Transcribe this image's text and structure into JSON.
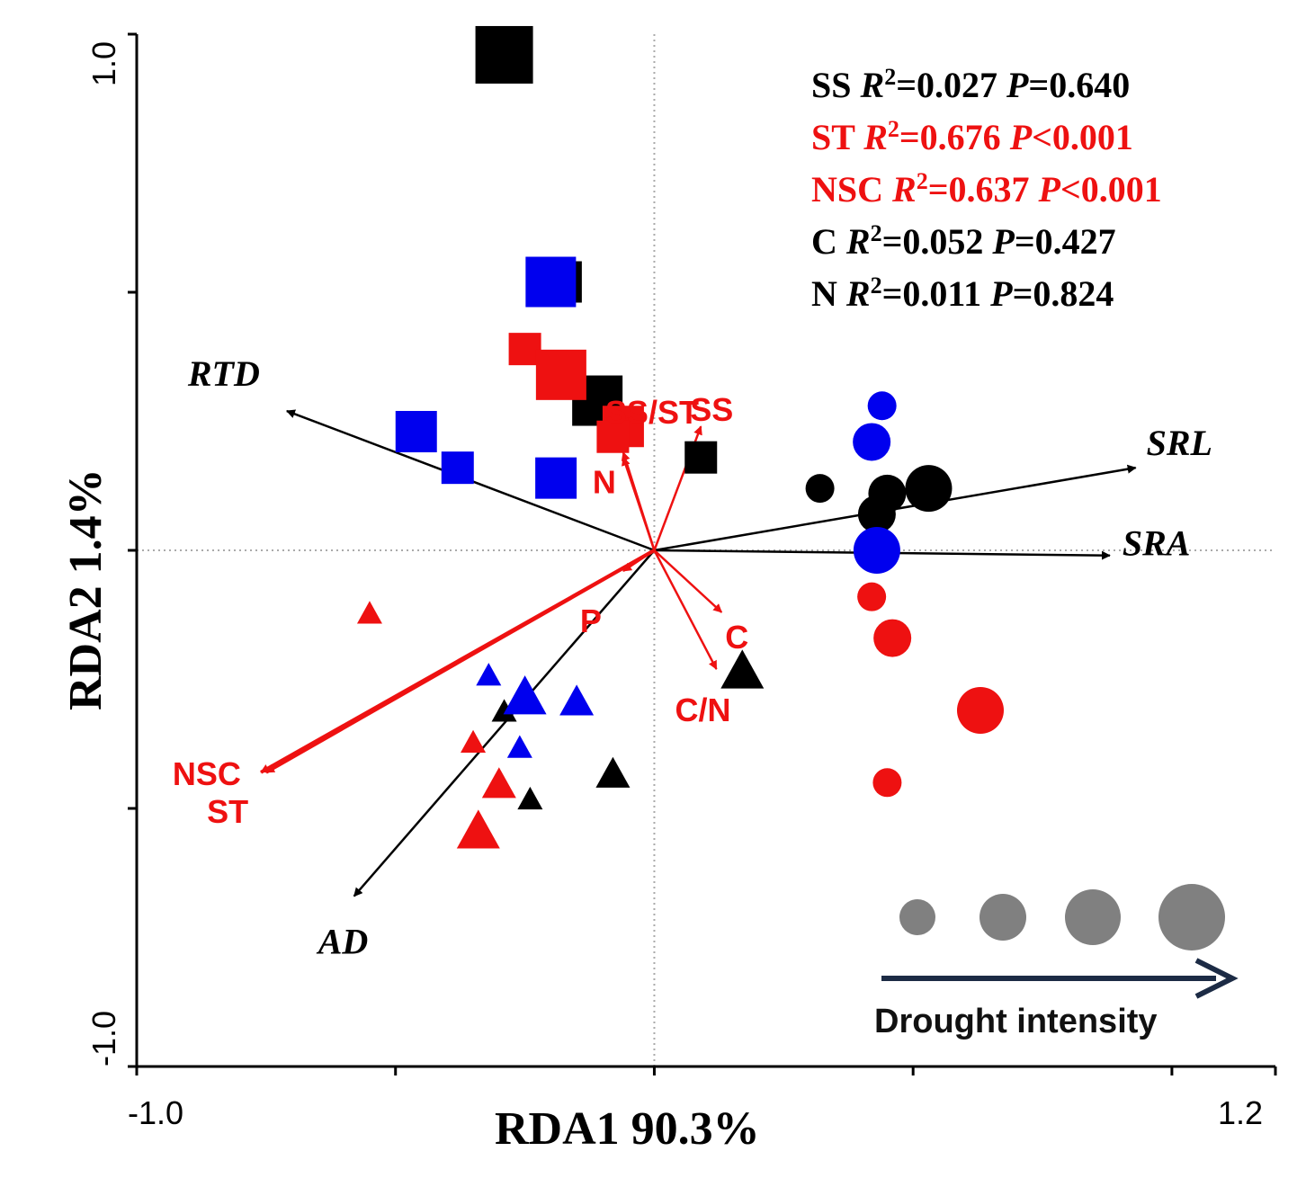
{
  "chart_data": {
    "type": "scatter",
    "subtype": "RDA biplot",
    "xlabel": "RDA1 90.3%",
    "ylabel": "RDA2 1.4%",
    "xlim": [
      -1.0,
      1.2
    ],
    "ylim": [
      -1.0,
      1.0
    ],
    "x_tick_labels": [
      "-1.0",
      "1.2"
    ],
    "y_tick_labels": [
      "1.0",
      "-1.0"
    ],
    "x_minor_ticks": [
      -1.0,
      -0.5,
      0.0,
      0.5,
      1.0
    ],
    "y_minor_ticks": [
      -1.0,
      -0.5,
      0.0,
      0.5,
      1.0
    ],
    "reference_lines": {
      "x": 0.0,
      "y": 0.0,
      "style": "dotted"
    },
    "colors": {
      "black": "#000000",
      "red": "#ee1111",
      "blue": "#0000ee",
      "legend_gray": "#808080",
      "drought_arrow": "#1c2b45"
    },
    "stats": [
      {
        "var": "SS",
        "r2_label": "R",
        "r2_value": "=0.027",
        "p_label": "P",
        "p_value": "=0.640",
        "color": "#000000"
      },
      {
        "var": "ST",
        "r2_label": "R",
        "r2_value": "=0.676",
        "p_label": "P",
        "p_value": "<0.001",
        "color": "#ee1111"
      },
      {
        "var": "NSC",
        "r2_label": "R",
        "r2_value": "=0.637",
        "p_label": "P",
        "p_value": "<0.001",
        "color": "#ee1111"
      },
      {
        "var": "C",
        "r2_label": "R",
        "r2_value": "=0.052",
        "p_label": "P",
        "p_value": "=0.427",
        "color": "#000000"
      },
      {
        "var": "N",
        "r2_label": "R",
        "r2_value": "=0.011",
        "p_label": "P",
        "p_value": "=0.824",
        "color": "#000000"
      }
    ],
    "vectors_black": [
      {
        "label": "RTD",
        "x": -0.71,
        "y": 0.27
      },
      {
        "label": "SRL",
        "x": 0.93,
        "y": 0.16
      },
      {
        "label": "SRA",
        "x": 0.88,
        "y": -0.01
      },
      {
        "label": "AD",
        "x": -0.58,
        "y": -0.67
      }
    ],
    "vectors_red": [
      {
        "label": "SS/ST",
        "x": -0.06,
        "y": 0.19
      },
      {
        "label": "SS",
        "x": 0.09,
        "y": 0.24
      },
      {
        "label": "N",
        "x": -0.06,
        "y": 0.18
      },
      {
        "label": "P",
        "x": -0.06,
        "y": -0.04
      },
      {
        "label": "C",
        "x": 0.13,
        "y": -0.12
      },
      {
        "label": "C/N",
        "x": 0.12,
        "y": -0.23
      },
      {
        "label": "NSC",
        "x": -0.75,
        "y": -0.43
      },
      {
        "label": "ST",
        "x": -0.76,
        "y": -0.43
      }
    ],
    "series": [
      {
        "name": "squares-black",
        "shape": "square",
        "color": "#000000",
        "points": [
          {
            "x": -0.29,
            "y": 0.96,
            "size": 4
          },
          {
            "x": -0.18,
            "y": 0.52,
            "size": 2
          },
          {
            "x": -0.11,
            "y": 0.29,
            "size": 3
          },
          {
            "x": 0.09,
            "y": 0.18,
            "size": 1
          }
        ]
      },
      {
        "name": "squares-red",
        "shape": "square",
        "color": "#ee1111",
        "points": [
          {
            "x": -0.25,
            "y": 0.39,
            "size": 1
          },
          {
            "x": -0.18,
            "y": 0.34,
            "size": 3
          },
          {
            "x": -0.06,
            "y": 0.24,
            "size": 2
          },
          {
            "x": -0.08,
            "y": 0.22,
            "size": 1
          }
        ]
      },
      {
        "name": "squares-blue",
        "shape": "square",
        "color": "#0000ee",
        "points": [
          {
            "x": -0.2,
            "y": 0.52,
            "size": 3
          },
          {
            "x": -0.46,
            "y": 0.23,
            "size": 2
          },
          {
            "x": -0.38,
            "y": 0.16,
            "size": 1
          },
          {
            "x": -0.19,
            "y": 0.14,
            "size": 2
          }
        ]
      },
      {
        "name": "circles-black",
        "shape": "circle",
        "color": "#000000",
        "points": [
          {
            "x": 0.32,
            "y": 0.12,
            "size": 1
          },
          {
            "x": 0.45,
            "y": 0.11,
            "size": 2
          },
          {
            "x": 0.53,
            "y": 0.12,
            "size": 3
          },
          {
            "x": 0.43,
            "y": 0.07,
            "size": 2
          }
        ]
      },
      {
        "name": "circles-blue",
        "shape": "circle",
        "color": "#0000ee",
        "points": [
          {
            "x": 0.44,
            "y": 0.28,
            "size": 1
          },
          {
            "x": 0.42,
            "y": 0.21,
            "size": 2
          },
          {
            "x": 0.43,
            "y": 0.0,
            "size": 3
          }
        ]
      },
      {
        "name": "circles-red",
        "shape": "circle",
        "color": "#ee1111",
        "points": [
          {
            "x": 0.42,
            "y": -0.09,
            "size": 1
          },
          {
            "x": 0.46,
            "y": -0.17,
            "size": 2
          },
          {
            "x": 0.63,
            "y": -0.31,
            "size": 3
          },
          {
            "x": 0.45,
            "y": -0.45,
            "size": 1
          }
        ]
      },
      {
        "name": "triangles-black",
        "shape": "triangle",
        "color": "#000000",
        "points": [
          {
            "x": 0.17,
            "y": -0.23,
            "size": 3
          },
          {
            "x": -0.29,
            "y": -0.31,
            "size": 1
          },
          {
            "x": -0.08,
            "y": -0.43,
            "size": 2
          },
          {
            "x": -0.24,
            "y": -0.48,
            "size": 1
          }
        ]
      },
      {
        "name": "triangles-blue",
        "shape": "triangle",
        "color": "#0000ee",
        "points": [
          {
            "x": -0.32,
            "y": -0.24,
            "size": 1
          },
          {
            "x": -0.25,
            "y": -0.28,
            "size": 3
          },
          {
            "x": -0.15,
            "y": -0.29,
            "size": 2
          },
          {
            "x": -0.26,
            "y": -0.38,
            "size": 1
          }
        ]
      },
      {
        "name": "triangles-red",
        "shape": "triangle",
        "color": "#ee1111",
        "points": [
          {
            "x": -0.55,
            "y": -0.12,
            "size": 1
          },
          {
            "x": -0.35,
            "y": -0.37,
            "size": 1
          },
          {
            "x": -0.3,
            "y": -0.45,
            "size": 2
          },
          {
            "x": -0.34,
            "y": -0.54,
            "size": 3
          }
        ]
      }
    ],
    "size_legend": {
      "label": "Drought intensity",
      "levels": [
        1,
        2,
        3,
        4
      ]
    }
  }
}
